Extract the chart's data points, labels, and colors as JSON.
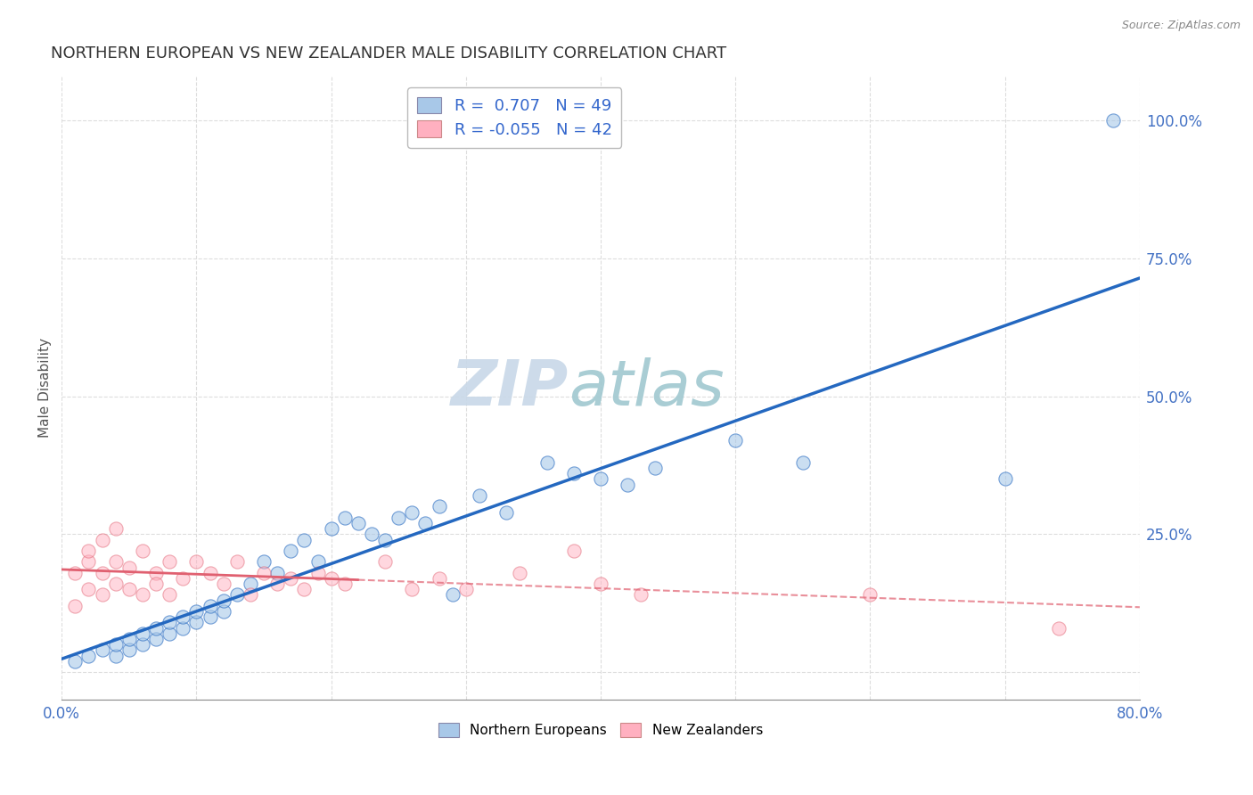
{
  "title": "NORTHERN EUROPEAN VS NEW ZEALANDER MALE DISABILITY CORRELATION CHART",
  "source": "Source: ZipAtlas.com",
  "xlabel": "",
  "ylabel": "Male Disability",
  "xlim": [
    0.0,
    0.8
  ],
  "ylim": [
    -0.05,
    1.08
  ],
  "ytick_positions": [
    0.0,
    0.25,
    0.5,
    0.75,
    1.0
  ],
  "ytick_labels": [
    "",
    "25.0%",
    "50.0%",
    "75.0%",
    "100.0%"
  ],
  "blue_R": 0.707,
  "blue_N": 49,
  "pink_R": -0.055,
  "pink_N": 42,
  "blue_color": "#A8C8E8",
  "pink_color": "#FFB0C0",
  "blue_line_color": "#2468C0",
  "pink_line_color": "#E06070",
  "watermark_color": "#C8D8E8",
  "legend_blue_label": "Northern Europeans",
  "legend_pink_label": "New Zealanders",
  "blue_scatter_x": [
    0.01,
    0.02,
    0.03,
    0.04,
    0.04,
    0.05,
    0.05,
    0.06,
    0.06,
    0.07,
    0.07,
    0.08,
    0.08,
    0.09,
    0.09,
    0.1,
    0.1,
    0.11,
    0.11,
    0.12,
    0.12,
    0.13,
    0.14,
    0.15,
    0.16,
    0.17,
    0.18,
    0.19,
    0.2,
    0.21,
    0.22,
    0.23,
    0.24,
    0.25,
    0.26,
    0.27,
    0.28,
    0.29,
    0.31,
    0.33,
    0.36,
    0.38,
    0.4,
    0.42,
    0.44,
    0.5,
    0.55,
    0.7,
    0.78
  ],
  "blue_scatter_y": [
    0.02,
    0.03,
    0.04,
    0.03,
    0.05,
    0.04,
    0.06,
    0.05,
    0.07,
    0.06,
    0.08,
    0.07,
    0.09,
    0.08,
    0.1,
    0.09,
    0.11,
    0.1,
    0.12,
    0.11,
    0.13,
    0.14,
    0.16,
    0.2,
    0.18,
    0.22,
    0.24,
    0.2,
    0.26,
    0.28,
    0.27,
    0.25,
    0.24,
    0.28,
    0.29,
    0.27,
    0.3,
    0.14,
    0.32,
    0.29,
    0.38,
    0.36,
    0.35,
    0.34,
    0.37,
    0.42,
    0.38,
    0.35,
    1.0
  ],
  "pink_scatter_x": [
    0.01,
    0.01,
    0.02,
    0.02,
    0.02,
    0.03,
    0.03,
    0.03,
    0.04,
    0.04,
    0.04,
    0.05,
    0.05,
    0.06,
    0.06,
    0.07,
    0.07,
    0.08,
    0.08,
    0.09,
    0.1,
    0.11,
    0.12,
    0.13,
    0.14,
    0.15,
    0.16,
    0.17,
    0.18,
    0.19,
    0.2,
    0.21,
    0.24,
    0.26,
    0.28,
    0.3,
    0.34,
    0.38,
    0.4,
    0.43,
    0.6,
    0.74
  ],
  "pink_scatter_y": [
    0.12,
    0.18,
    0.15,
    0.2,
    0.22,
    0.14,
    0.18,
    0.24,
    0.16,
    0.2,
    0.26,
    0.15,
    0.19,
    0.22,
    0.14,
    0.18,
    0.16,
    0.2,
    0.14,
    0.17,
    0.2,
    0.18,
    0.16,
    0.2,
    0.14,
    0.18,
    0.16,
    0.17,
    0.15,
    0.18,
    0.17,
    0.16,
    0.2,
    0.15,
    0.17,
    0.15,
    0.18,
    0.22,
    0.16,
    0.14,
    0.14,
    0.08
  ],
  "grid_color": "#DDDDDD",
  "background_color": "#FFFFFF"
}
